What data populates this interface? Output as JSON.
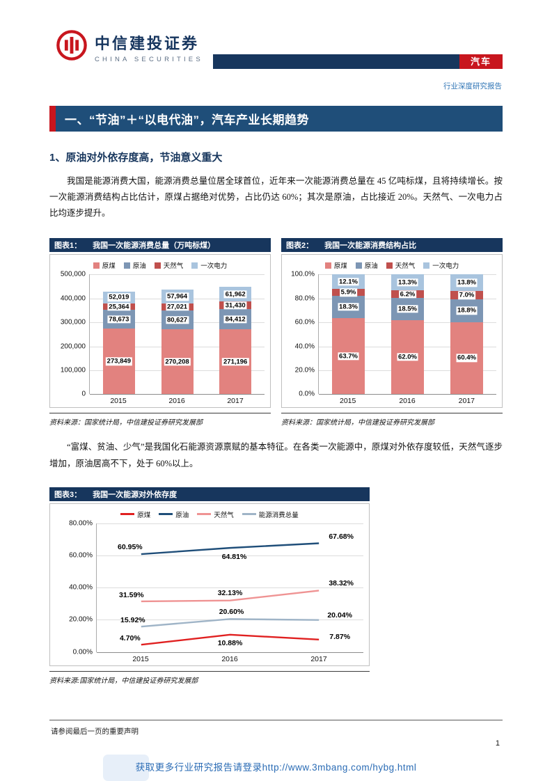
{
  "theme": {
    "navy": "#17365d",
    "band_blue": "#1f4e79",
    "accent_red": "#c8161e",
    "link_blue": "#2b6cb5"
  },
  "header": {
    "logo_cn": "中信建投证券",
    "logo_en": "CHINA SECURITIES",
    "category_badge": "汽车",
    "report_type": "行业深度研究报告"
  },
  "section": {
    "heading": "一、“节油”＋“以电代油”，汽车产业长期趋势",
    "sub_heading": "1、原油对外依存度高，节油意义重大",
    "para1": "我国是能源消费大国，能源消费总量位居全球首位，近年来一次能源消费总量在 45 亿吨标煤，且将持续增长。按一次能源消费结构占比估计，原煤占据绝对优势，占比仍达 60%；其次是原油，占比接近 20%。天然气、一次电力占比均逐步提升。",
    "para2": "“富煤、贫油、少气”是我国化石能源资源禀赋的基本特征。在各类一次能源中，原煤对外依存度较低，天然气逐步增加，原油居高不下，处于 60%以上。"
  },
  "chart_data": [
    {
      "type": "bar-stacked",
      "label": "图表1：",
      "title": "我国一次能源消费总量（万吨标煤）",
      "categories": [
        "2015",
        "2016",
        "2017"
      ],
      "series": [
        {
          "name": "原煤",
          "color": "#e2827f",
          "values": [
            273849,
            270208,
            271196
          ],
          "value_labels": [
            "273,849",
            "270,208",
            "271,196"
          ]
        },
        {
          "name": "原油",
          "color": "#7d96b4",
          "values": [
            78673,
            80627,
            84412
          ],
          "value_labels": [
            "78,673",
            "80,627",
            "84,412"
          ]
        },
        {
          "name": "天然气",
          "color": "#c0504d",
          "values": [
            25364,
            27021,
            31430
          ],
          "value_labels": [
            "25,364",
            "27,021",
            "31,430"
          ]
        },
        {
          "name": "一次电力",
          "color": "#a9c4de",
          "values": [
            52019,
            57964,
            61962
          ],
          "value_labels": [
            "52,019",
            "57,964",
            "61,962"
          ]
        }
      ],
      "ylim": [
        0,
        500000
      ],
      "yticks": [
        "500,000",
        "400,000",
        "300,000",
        "200,000",
        "100,000",
        "0"
      ],
      "grid": true,
      "legend_position": "top",
      "source": "资料来源：国家统计局，中信建投证券研究发展部"
    },
    {
      "type": "bar-stacked",
      "label": "图表2：",
      "title": "我国一次能源消费结构占比",
      "categories": [
        "2015",
        "2016",
        "2017"
      ],
      "series": [
        {
          "name": "原煤",
          "color": "#e2827f",
          "values": [
            63.7,
            62.0,
            60.4
          ],
          "value_labels": [
            "63.7%",
            "62.0%",
            "60.4%"
          ]
        },
        {
          "name": "原油",
          "color": "#7d96b4",
          "values": [
            18.3,
            18.5,
            18.8
          ],
          "value_labels": [
            "18.3%",
            "18.5%",
            "18.8%"
          ]
        },
        {
          "name": "天然气",
          "color": "#c0504d",
          "values": [
            5.9,
            6.2,
            7.0
          ],
          "value_labels": [
            "5.9%",
            "6.2%",
            "7.0%"
          ]
        },
        {
          "name": "一次电力",
          "color": "#a9c4de",
          "values": [
            12.1,
            13.3,
            13.8
          ],
          "value_labels": [
            "12.1%",
            "13.3%",
            "13.8%"
          ]
        }
      ],
      "ylim": [
        0,
        100
      ],
      "yticks": [
        "100.0%",
        "80.0%",
        "60.0%",
        "40.0%",
        "20.0%",
        "0.0%"
      ],
      "grid": true,
      "legend_position": "top",
      "source": "资料来源：国家统计局，中信建投证券研究发展部"
    },
    {
      "type": "line",
      "label": "图表3：",
      "title": "我国一次能源对外依存度",
      "categories": [
        "2015",
        "2016",
        "2017"
      ],
      "series": [
        {
          "name": "原煤",
          "color": "#e02020",
          "values": [
            4.7,
            10.88,
            7.87
          ],
          "value_labels": [
            "4.70%",
            "10.88%",
            "7.87%"
          ]
        },
        {
          "name": "原油",
          "color": "#1f4e79",
          "values": [
            60.95,
            64.81,
            67.68
          ],
          "value_labels": [
            "60.95%",
            "64.81%",
            "67.68%"
          ]
        },
        {
          "name": "天然气",
          "color": "#ef9393",
          "values": [
            31.59,
            32.13,
            38.32
          ],
          "value_labels": [
            "31.59%",
            "32.13%",
            "38.32%"
          ]
        },
        {
          "name": "能源消费总量",
          "color": "#9fb4c7",
          "values": [
            15.92,
            20.6,
            20.04
          ],
          "value_labels": [
            "15.92%",
            "20.60%",
            "20.04%"
          ]
        }
      ],
      "ylim": [
        0,
        80
      ],
      "yticks": [
        "80.00%",
        "60.00%",
        "40.00%",
        "20.00%",
        "0.00%"
      ],
      "grid": true,
      "legend_position": "top",
      "source": "资料来源:国家统计局，中信建投证券研究发展部"
    }
  ],
  "footer": {
    "disclaimer": "请参阅最后一页的重要声明",
    "page_number": "1",
    "promo_link": "获取更多行业研究报告请登录http://www.3mbang.com/hybg.html"
  }
}
